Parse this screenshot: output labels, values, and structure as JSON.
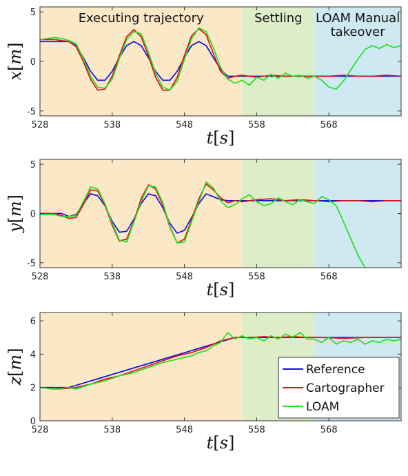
{
  "chart_data": [
    {
      "type": "line",
      "xlabel": "t[s]",
      "ylabel": "x[m]",
      "xlim": [
        528,
        578
      ],
      "ylim": [
        -5.5,
        5.5
      ],
      "xticks": [
        528,
        538,
        548,
        558,
        568
      ],
      "yticks": [
        -5,
        0,
        5
      ],
      "grid": false,
      "regions": [
        {
          "label": "Executing trajectory",
          "x": [
            528,
            556
          ],
          "color": "#fbe8c6"
        },
        {
          "label": "Settling",
          "x": [
            556,
            566
          ],
          "color": "#dcedc8"
        },
        {
          "label": "LOAM Manual takeover",
          "label_lines": [
            "LOAM Manual",
            "takeover"
          ],
          "x": [
            566,
            578
          ],
          "color": "#cfe9f2"
        }
      ],
      "series": [
        {
          "name": "Reference",
          "color": "#1010e0",
          "x": [
            528,
            530,
            531,
            532,
            533,
            534,
            535,
            536,
            537,
            538,
            539,
            540,
            541,
            542,
            543,
            544,
            545,
            546,
            547,
            548,
            549,
            550,
            551,
            552,
            553,
            554,
            555,
            556,
            560,
            565,
            570,
            578
          ],
          "y": [
            2.0,
            2.0,
            2.0,
            2.0,
            1.6,
            0.4,
            -1.0,
            -1.9,
            -1.9,
            -1.0,
            0.4,
            1.6,
            2.0,
            1.6,
            0.4,
            -1.0,
            -1.9,
            -1.9,
            -1.0,
            0.4,
            1.6,
            2.0,
            1.6,
            0.4,
            -0.8,
            -1.5,
            -1.5,
            -1.5,
            -1.5,
            -1.5,
            -1.5,
            -1.5
          ]
        },
        {
          "name": "Cartographer",
          "color": "#e01010",
          "x": [
            528,
            530,
            531,
            532,
            533,
            534,
            535,
            536,
            537,
            538,
            539,
            540,
            541,
            542,
            543,
            544,
            545,
            546,
            547,
            548,
            549,
            550,
            551,
            552,
            553,
            554,
            555,
            556,
            558,
            560,
            562,
            564,
            566,
            568,
            570,
            572,
            574,
            576,
            578
          ],
          "y": [
            2.2,
            2.2,
            2.1,
            2.0,
            1.5,
            0.0,
            -1.8,
            -2.9,
            -2.8,
            -1.5,
            0.6,
            2.5,
            3.2,
            2.5,
            0.6,
            -1.6,
            -2.9,
            -2.9,
            -1.6,
            0.6,
            2.6,
            3.3,
            2.7,
            0.8,
            -1.0,
            -1.7,
            -1.5,
            -1.4,
            -1.6,
            -1.4,
            -1.5,
            -1.5,
            -1.5,
            -1.5,
            -1.4,
            -1.5,
            -1.5,
            -1.4,
            -1.5
          ]
        },
        {
          "name": "LOAM",
          "color": "#20e020",
          "x": [
            528,
            530,
            531,
            532,
            533,
            534,
            535,
            536,
            537,
            538,
            539,
            540,
            541,
            542,
            543,
            544,
            545,
            546,
            547,
            548,
            549,
            550,
            551,
            552,
            553,
            554,
            555,
            556,
            557,
            558,
            559,
            560,
            561,
            562,
            563,
            564,
            565,
            566,
            567,
            568,
            569,
            570,
            571,
            572,
            573,
            574,
            575,
            576,
            577,
            578
          ],
          "y": [
            2.2,
            2.4,
            2.3,
            2.1,
            1.8,
            0.3,
            -1.5,
            -2.6,
            -2.7,
            -1.8,
            0.3,
            2.2,
            3.0,
            2.8,
            1.0,
            -1.2,
            -2.6,
            -2.9,
            -2.0,
            0.2,
            2.3,
            3.4,
            3.0,
            1.4,
            -0.6,
            -1.8,
            -2.2,
            -1.9,
            -2.4,
            -1.6,
            -1.9,
            -1.3,
            -1.7,
            -1.2,
            -1.5,
            -1.4,
            -1.7,
            -1.5,
            -1.9,
            -2.6,
            -2.8,
            -2.0,
            -0.9,
            0.2,
            1.2,
            1.6,
            1.3,
            1.7,
            1.4,
            1.6
          ]
        }
      ]
    },
    {
      "type": "line",
      "xlabel": "t[s]",
      "ylabel": "y[m]",
      "xlim": [
        528,
        578
      ],
      "ylim": [
        -5.5,
        5.5
      ],
      "xticks": [
        528,
        538,
        548,
        558,
        568
      ],
      "yticks": [
        -5,
        0,
        5
      ],
      "grid": false,
      "regions": [
        {
          "x": [
            528,
            556
          ],
          "color": "#fbe8c6"
        },
        {
          "x": [
            556,
            566
          ],
          "color": "#dcedc8"
        },
        {
          "x": [
            566,
            578
          ],
          "color": "#cfe9f2"
        }
      ],
      "series": [
        {
          "name": "Reference",
          "color": "#1010e0",
          "x": [
            528,
            530,
            531,
            532,
            533,
            534,
            535,
            536,
            537,
            538,
            539,
            540,
            541,
            542,
            543,
            544,
            545,
            546,
            547,
            548,
            549,
            550,
            551,
            552,
            553,
            554,
            555,
            556,
            560,
            565,
            570,
            578
          ],
          "y": [
            0,
            0,
            0,
            -0.3,
            -0.1,
            1.0,
            2.0,
            1.8,
            0.8,
            -0.8,
            -1.9,
            -1.8,
            -0.6,
            1.0,
            2.0,
            1.8,
            0.6,
            -1.0,
            -2.0,
            -1.7,
            -0.4,
            1.0,
            2.0,
            1.7,
            1.4,
            1.3,
            1.3,
            1.3,
            1.3,
            1.3,
            1.3,
            1.3
          ]
        },
        {
          "name": "Cartographer",
          "color": "#e01010",
          "x": [
            528,
            530,
            531,
            532,
            533,
            534,
            535,
            536,
            537,
            538,
            539,
            540,
            541,
            542,
            543,
            544,
            545,
            546,
            547,
            548,
            549,
            550,
            551,
            552,
            553,
            554,
            555,
            556,
            558,
            560,
            562,
            564,
            566,
            568,
            570,
            572,
            574,
            576,
            578
          ],
          "y": [
            0,
            0,
            -0.2,
            -0.5,
            -0.4,
            0.9,
            2.4,
            2.3,
            0.9,
            -1.2,
            -2.8,
            -2.6,
            -0.8,
            1.5,
            2.9,
            2.5,
            0.9,
            -1.4,
            -3.0,
            -2.6,
            -0.6,
            1.5,
            3.0,
            2.4,
            1.6,
            1.1,
            1.3,
            1.2,
            1.4,
            1.5,
            1.3,
            1.4,
            1.3,
            1.2,
            1.3,
            1.3,
            1.2,
            1.3,
            1.3
          ]
        },
        {
          "name": "LOAM",
          "color": "#20e020",
          "x": [
            528,
            530,
            531,
            532,
            533,
            534,
            535,
            536,
            537,
            538,
            539,
            540,
            541,
            542,
            543,
            544,
            545,
            546,
            547,
            548,
            549,
            550,
            551,
            552,
            553,
            554,
            555,
            556,
            557,
            558,
            559,
            560,
            561,
            562,
            563,
            564,
            565,
            566,
            567,
            568,
            569,
            570,
            571,
            572,
            573
          ],
          "y": [
            -0.1,
            -0.1,
            -0.3,
            -0.3,
            -0.2,
            1.2,
            2.7,
            2.5,
            1.0,
            -1.0,
            -2.7,
            -2.9,
            -0.9,
            1.2,
            2.8,
            2.7,
            1.1,
            -1.3,
            -3.0,
            -2.9,
            -0.8,
            1.2,
            3.2,
            2.6,
            1.3,
            0.6,
            0.9,
            1.5,
            1.9,
            1.2,
            0.8,
            1.0,
            1.6,
            1.2,
            0.9,
            1.4,
            1.2,
            1.0,
            1.7,
            1.4,
            0.8,
            -0.8,
            -2.5,
            -4.2,
            -5.5
          ]
        }
      ]
    },
    {
      "type": "line",
      "xlabel": "t[s]",
      "ylabel": "z[m]",
      "xlim": [
        528,
        578
      ],
      "ylim": [
        0,
        6.5
      ],
      "xticks": [
        528,
        538,
        548,
        558,
        568
      ],
      "yticks": [
        0,
        2,
        4,
        6
      ],
      "grid": false,
      "legend": "bottom-right",
      "regions": [
        {
          "x": [
            528,
            556
          ],
          "color": "#fbe8c6"
        },
        {
          "x": [
            556,
            566
          ],
          "color": "#dcedc8"
        },
        {
          "x": [
            566,
            578
          ],
          "color": "#cfe9f2"
        }
      ],
      "series": [
        {
          "name": "Reference",
          "color": "#1010e0",
          "x": [
            528,
            532,
            555,
            578
          ],
          "y": [
            2.0,
            2.0,
            5.0,
            5.0
          ]
        },
        {
          "name": "Cartographer",
          "color": "#e01010",
          "x": [
            528,
            530,
            532,
            533,
            535,
            537,
            539,
            541,
            543,
            545,
            547,
            549,
            551,
            553,
            555,
            557,
            559,
            561,
            563,
            565,
            567,
            570,
            573,
            576,
            578
          ],
          "y": [
            2.0,
            1.9,
            1.95,
            2.0,
            2.2,
            2.5,
            2.7,
            3.0,
            3.3,
            3.6,
            3.9,
            4.1,
            4.4,
            4.8,
            5.0,
            5.0,
            5.05,
            5.0,
            5.05,
            5.0,
            5.0,
            4.95,
            5.0,
            5.0,
            5.0
          ]
        },
        {
          "name": "LOAM",
          "color": "#20e020",
          "x": [
            528,
            530,
            532,
            533,
            535,
            537,
            539,
            541,
            543,
            545,
            547,
            549,
            550,
            551,
            552,
            553,
            554,
            555,
            556,
            557,
            558,
            559,
            560,
            561,
            562,
            563,
            564,
            565,
            566,
            567,
            568,
            569,
            570,
            571,
            572,
            573,
            574,
            575,
            576,
            577,
            578
          ],
          "y": [
            2.0,
            1.9,
            2.0,
            1.9,
            2.2,
            2.4,
            2.7,
            2.9,
            3.2,
            3.5,
            3.7,
            3.9,
            4.1,
            4.2,
            4.5,
            4.7,
            5.3,
            4.9,
            5.1,
            4.9,
            5.0,
            4.8,
            5.1,
            4.9,
            5.2,
            5.0,
            5.3,
            4.9,
            4.9,
            4.7,
            5.0,
            4.6,
            4.8,
            4.7,
            4.9,
            4.6,
            4.8,
            4.7,
            4.9,
            4.8,
            4.9
          ]
        }
      ]
    }
  ]
}
